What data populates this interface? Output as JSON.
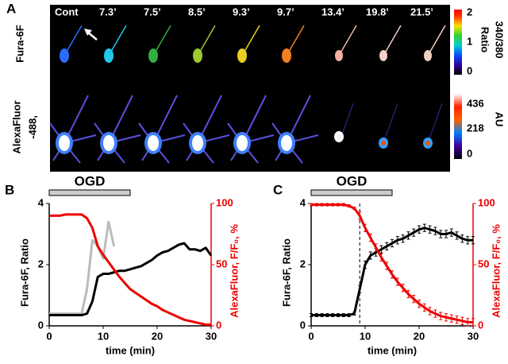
{
  "panel_a": {
    "label": "A",
    "times": [
      "Cont",
      "7.3’",
      "7.5’",
      "8.5’",
      "9.3’",
      "9.7’",
      "13.4’",
      "19.8’",
      "21.5’"
    ],
    "row1_label": "Fura-6F",
    "row2_label": [
      "AlexaFluor",
      "-488,"
    ],
    "colorbar1": {
      "title": "340/380",
      "unit": "Ratio",
      "ticks": [
        "2",
        "1",
        "0"
      ]
    },
    "colorbar2": {
      "unit": "AU",
      "ticks": [
        "436",
        "218",
        "0"
      ]
    }
  },
  "chart_data": [
    {
      "type": "line",
      "panel": "B",
      "xlabel": "time (min)",
      "ylabel": "Fura-6F, Ratio",
      "y2label": "AlexaFluor, F/F₀, %",
      "x": [
        0,
        1,
        2,
        3,
        4,
        5,
        6,
        7,
        8,
        9,
        10,
        11,
        12,
        13,
        14,
        15,
        16,
        17,
        18,
        19,
        20,
        21,
        22,
        23,
        24,
        25,
        26,
        27,
        28,
        29,
        30
      ],
      "xlim": [
        0,
        30
      ],
      "xticks": [
        0,
        10,
        20,
        30
      ],
      "ylim": [
        0,
        4
      ],
      "yticks": [
        0,
        2,
        4
      ],
      "y2lim": [
        0,
        100
      ],
      "y2ticks": [
        0,
        50,
        100
      ],
      "annotations": [
        {
          "text": "OGD",
          "start": 0,
          "end": 15
        }
      ],
      "series": [
        {
          "color": "#bbbbbb",
          "values": [
            0.4,
            0.4,
            0.4,
            0.4,
            0.4,
            0.4,
            0.4,
            1.2,
            2.8,
            2.6,
            2.2,
            3.4,
            2.6,
            null,
            null,
            null,
            null,
            null,
            null,
            null,
            null,
            null,
            null,
            null,
            null,
            null,
            null,
            null,
            null,
            null,
            null
          ]
        },
        {
          "color": "#000000",
          "values": [
            0.35,
            0.35,
            0.35,
            0.35,
            0.35,
            0.35,
            0.35,
            0.4,
            0.8,
            1.6,
            1.7,
            1.7,
            1.75,
            1.8,
            1.8,
            1.85,
            1.9,
            1.95,
            2.05,
            2.15,
            2.3,
            2.4,
            2.45,
            2.55,
            2.65,
            2.7,
            2.5,
            2.5,
            2.45,
            2.55,
            2.3
          ]
        },
        {
          "color": "#ee0000",
          "axis": "y2",
          "values": [
            90,
            90,
            90,
            91,
            91,
            91,
            91,
            88,
            80,
            65,
            58,
            52,
            46,
            40,
            35,
            30,
            27,
            24,
            21,
            18,
            16,
            13,
            11,
            9,
            7,
            5,
            4,
            3,
            2,
            1,
            1
          ]
        }
      ]
    },
    {
      "type": "line",
      "panel": "C",
      "xlabel": "time (min)",
      "ylabel": "Fura-6F, Ratio",
      "y2label": "AlexaFluor, F/F₀, %",
      "x": [
        0,
        1,
        2,
        3,
        4,
        5,
        6,
        7,
        8,
        9,
        10,
        11,
        12,
        13,
        14,
        15,
        16,
        17,
        18,
        19,
        20,
        21,
        22,
        23,
        24,
        25,
        26,
        27,
        28,
        29,
        30
      ],
      "xlim": [
        0,
        30
      ],
      "xticks": [
        0,
        10,
        20,
        30
      ],
      "ylim": [
        0,
        4
      ],
      "yticks": [
        0,
        2,
        4
      ],
      "y2lim": [
        0,
        100
      ],
      "y2ticks": [
        0,
        50,
        100
      ],
      "annotations": [
        {
          "text": "OGD",
          "start": 0,
          "end": 15
        }
      ],
      "vlines": [
        9
      ],
      "series": [
        {
          "color": "#000000",
          "values": [
            0.35,
            0.35,
            0.35,
            0.35,
            0.35,
            0.35,
            0.35,
            0.35,
            0.4,
            1.2,
            2.0,
            2.3,
            2.4,
            2.5,
            2.6,
            2.7,
            2.8,
            2.85,
            2.95,
            3.05,
            3.15,
            3.2,
            3.15,
            3.1,
            3.0,
            3.0,
            3.05,
            2.95,
            2.85,
            2.8,
            2.8
          ],
          "errors": [
            0.05,
            0.05,
            0.05,
            0.05,
            0.05,
            0.05,
            0.05,
            0.05,
            0.05,
            0.12,
            0.12,
            0.12,
            0.12,
            0.12,
            0.12,
            0.12,
            0.12,
            0.12,
            0.12,
            0.12,
            0.12,
            0.12,
            0.12,
            0.12,
            0.12,
            0.12,
            0.12,
            0.12,
            0.12,
            0.12,
            0.12
          ]
        },
        {
          "color": "#ee0000",
          "axis": "y2",
          "values": [
            99,
            99,
            99,
            99,
            99,
            99,
            99,
            98,
            96,
            90,
            80,
            72,
            64,
            56,
            49,
            42,
            36,
            31,
            26,
            22,
            18,
            15,
            12,
            10,
            8,
            7,
            6,
            5,
            4,
            3,
            3
          ],
          "errors": [
            1,
            1,
            1,
            1,
            1,
            1,
            1,
            1,
            1,
            3,
            3,
            3,
            3,
            3,
            3,
            3,
            3,
            3,
            3,
            3,
            3,
            3,
            3,
            3,
            3,
            3,
            3,
            3,
            3,
            3,
            3
          ]
        }
      ]
    }
  ]
}
